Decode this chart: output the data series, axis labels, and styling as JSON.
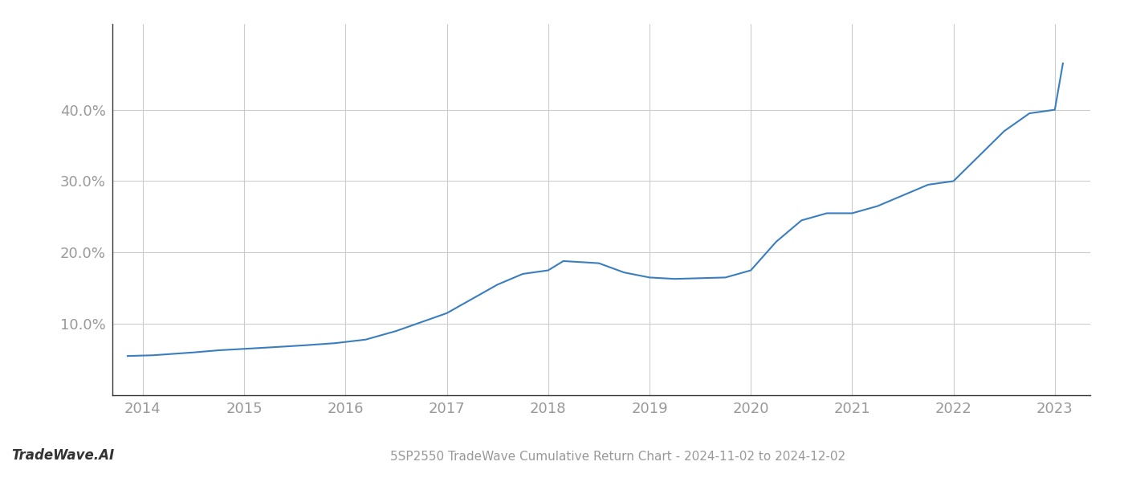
{
  "title": "5SP2550 TradeWave Cumulative Return Chart - 2024-11-02 to 2024-12-02",
  "watermark": "TradeWave.AI",
  "line_color": "#3a7ebf",
  "background_color": "#ffffff",
  "grid_color": "#cccccc",
  "x_years": [
    2014,
    2015,
    2016,
    2017,
    2018,
    2019,
    2020,
    2021,
    2022,
    2023
  ],
  "x_data": [
    2013.85,
    2014.1,
    2014.5,
    2014.75,
    2015.0,
    2015.25,
    2015.6,
    2015.9,
    2016.2,
    2016.5,
    2016.8,
    2017.0,
    2017.25,
    2017.5,
    2017.75,
    2018.0,
    2018.15,
    2018.5,
    2018.75,
    2019.0,
    2019.25,
    2019.5,
    2019.75,
    2020.0,
    2020.25,
    2020.5,
    2020.75,
    2021.0,
    2021.25,
    2021.5,
    2021.75,
    2022.0,
    2022.25,
    2022.5,
    2022.75,
    2023.0,
    2023.08
  ],
  "y_data": [
    5.5,
    5.6,
    6.0,
    6.3,
    6.5,
    6.7,
    7.0,
    7.3,
    7.8,
    9.0,
    10.5,
    11.5,
    13.5,
    15.5,
    17.0,
    17.5,
    18.8,
    18.5,
    17.2,
    16.5,
    16.3,
    16.4,
    16.5,
    17.5,
    21.5,
    24.5,
    25.5,
    25.5,
    26.5,
    28.0,
    29.5,
    30.0,
    33.5,
    37.0,
    39.5,
    40.0,
    46.5
  ],
  "yticks": [
    10.0,
    20.0,
    30.0,
    40.0
  ],
  "ylim": [
    0,
    52
  ],
  "xlim": [
    2013.7,
    2023.35
  ],
  "title_fontsize": 11,
  "tick_fontsize": 13,
  "watermark_fontsize": 12,
  "line_width": 1.5,
  "spine_color": "#333333",
  "tick_color": "#999999"
}
